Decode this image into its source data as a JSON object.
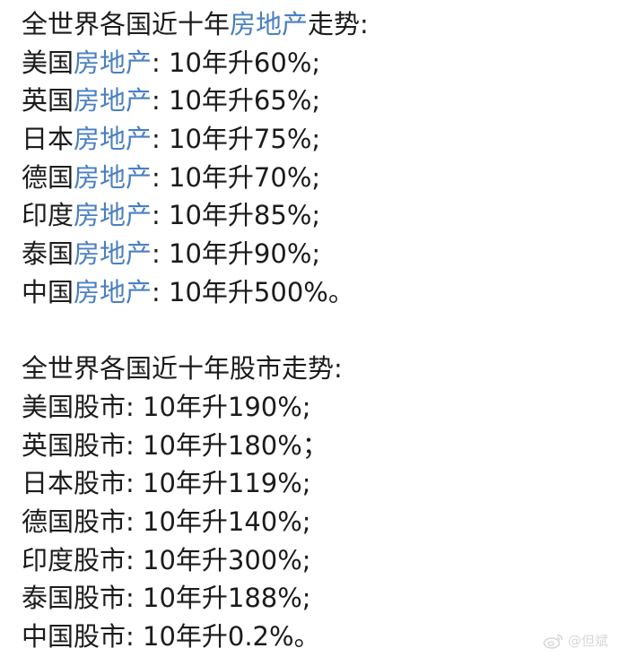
{
  "real_estate": {
    "heading": {
      "prefix": "全世界各国近十年",
      "link": "房地产",
      "suffix": "走势:"
    },
    "items": [
      {
        "country": "美国",
        "link": "房地产",
        "rest": ": 10年升60%;"
      },
      {
        "country": "英国",
        "link": "房地产",
        "rest": ": 10年升65%;"
      },
      {
        "country": "日本",
        "link": "房地产",
        "rest": ": 10年升75%;"
      },
      {
        "country": "德国",
        "link": "房地产",
        "rest": ": 10年升70%;"
      },
      {
        "country": "印度",
        "link": "房地产",
        "rest": ": 10年升85%;"
      },
      {
        "country": "泰国",
        "link": "房地产",
        "rest": ": 10年升90%;"
      },
      {
        "country": "中国",
        "link": "房地产",
        "rest": ": 10年升500%。"
      }
    ]
  },
  "stock_market": {
    "heading": "全世界各国近十年股市走势:",
    "items": [
      "美国股市: 10年升190%;",
      "英国股市: 10年升180%；",
      "日本股市: 10年升119%;",
      "德国股市: 10年升140%;",
      "印度股市: 10年升300%;",
      "泰国股市: 10年升188%;",
      "中国股市: 10年升0.2%。"
    ]
  },
  "watermark": {
    "text": "@但斌",
    "icon": "weibo-logo-icon"
  }
}
